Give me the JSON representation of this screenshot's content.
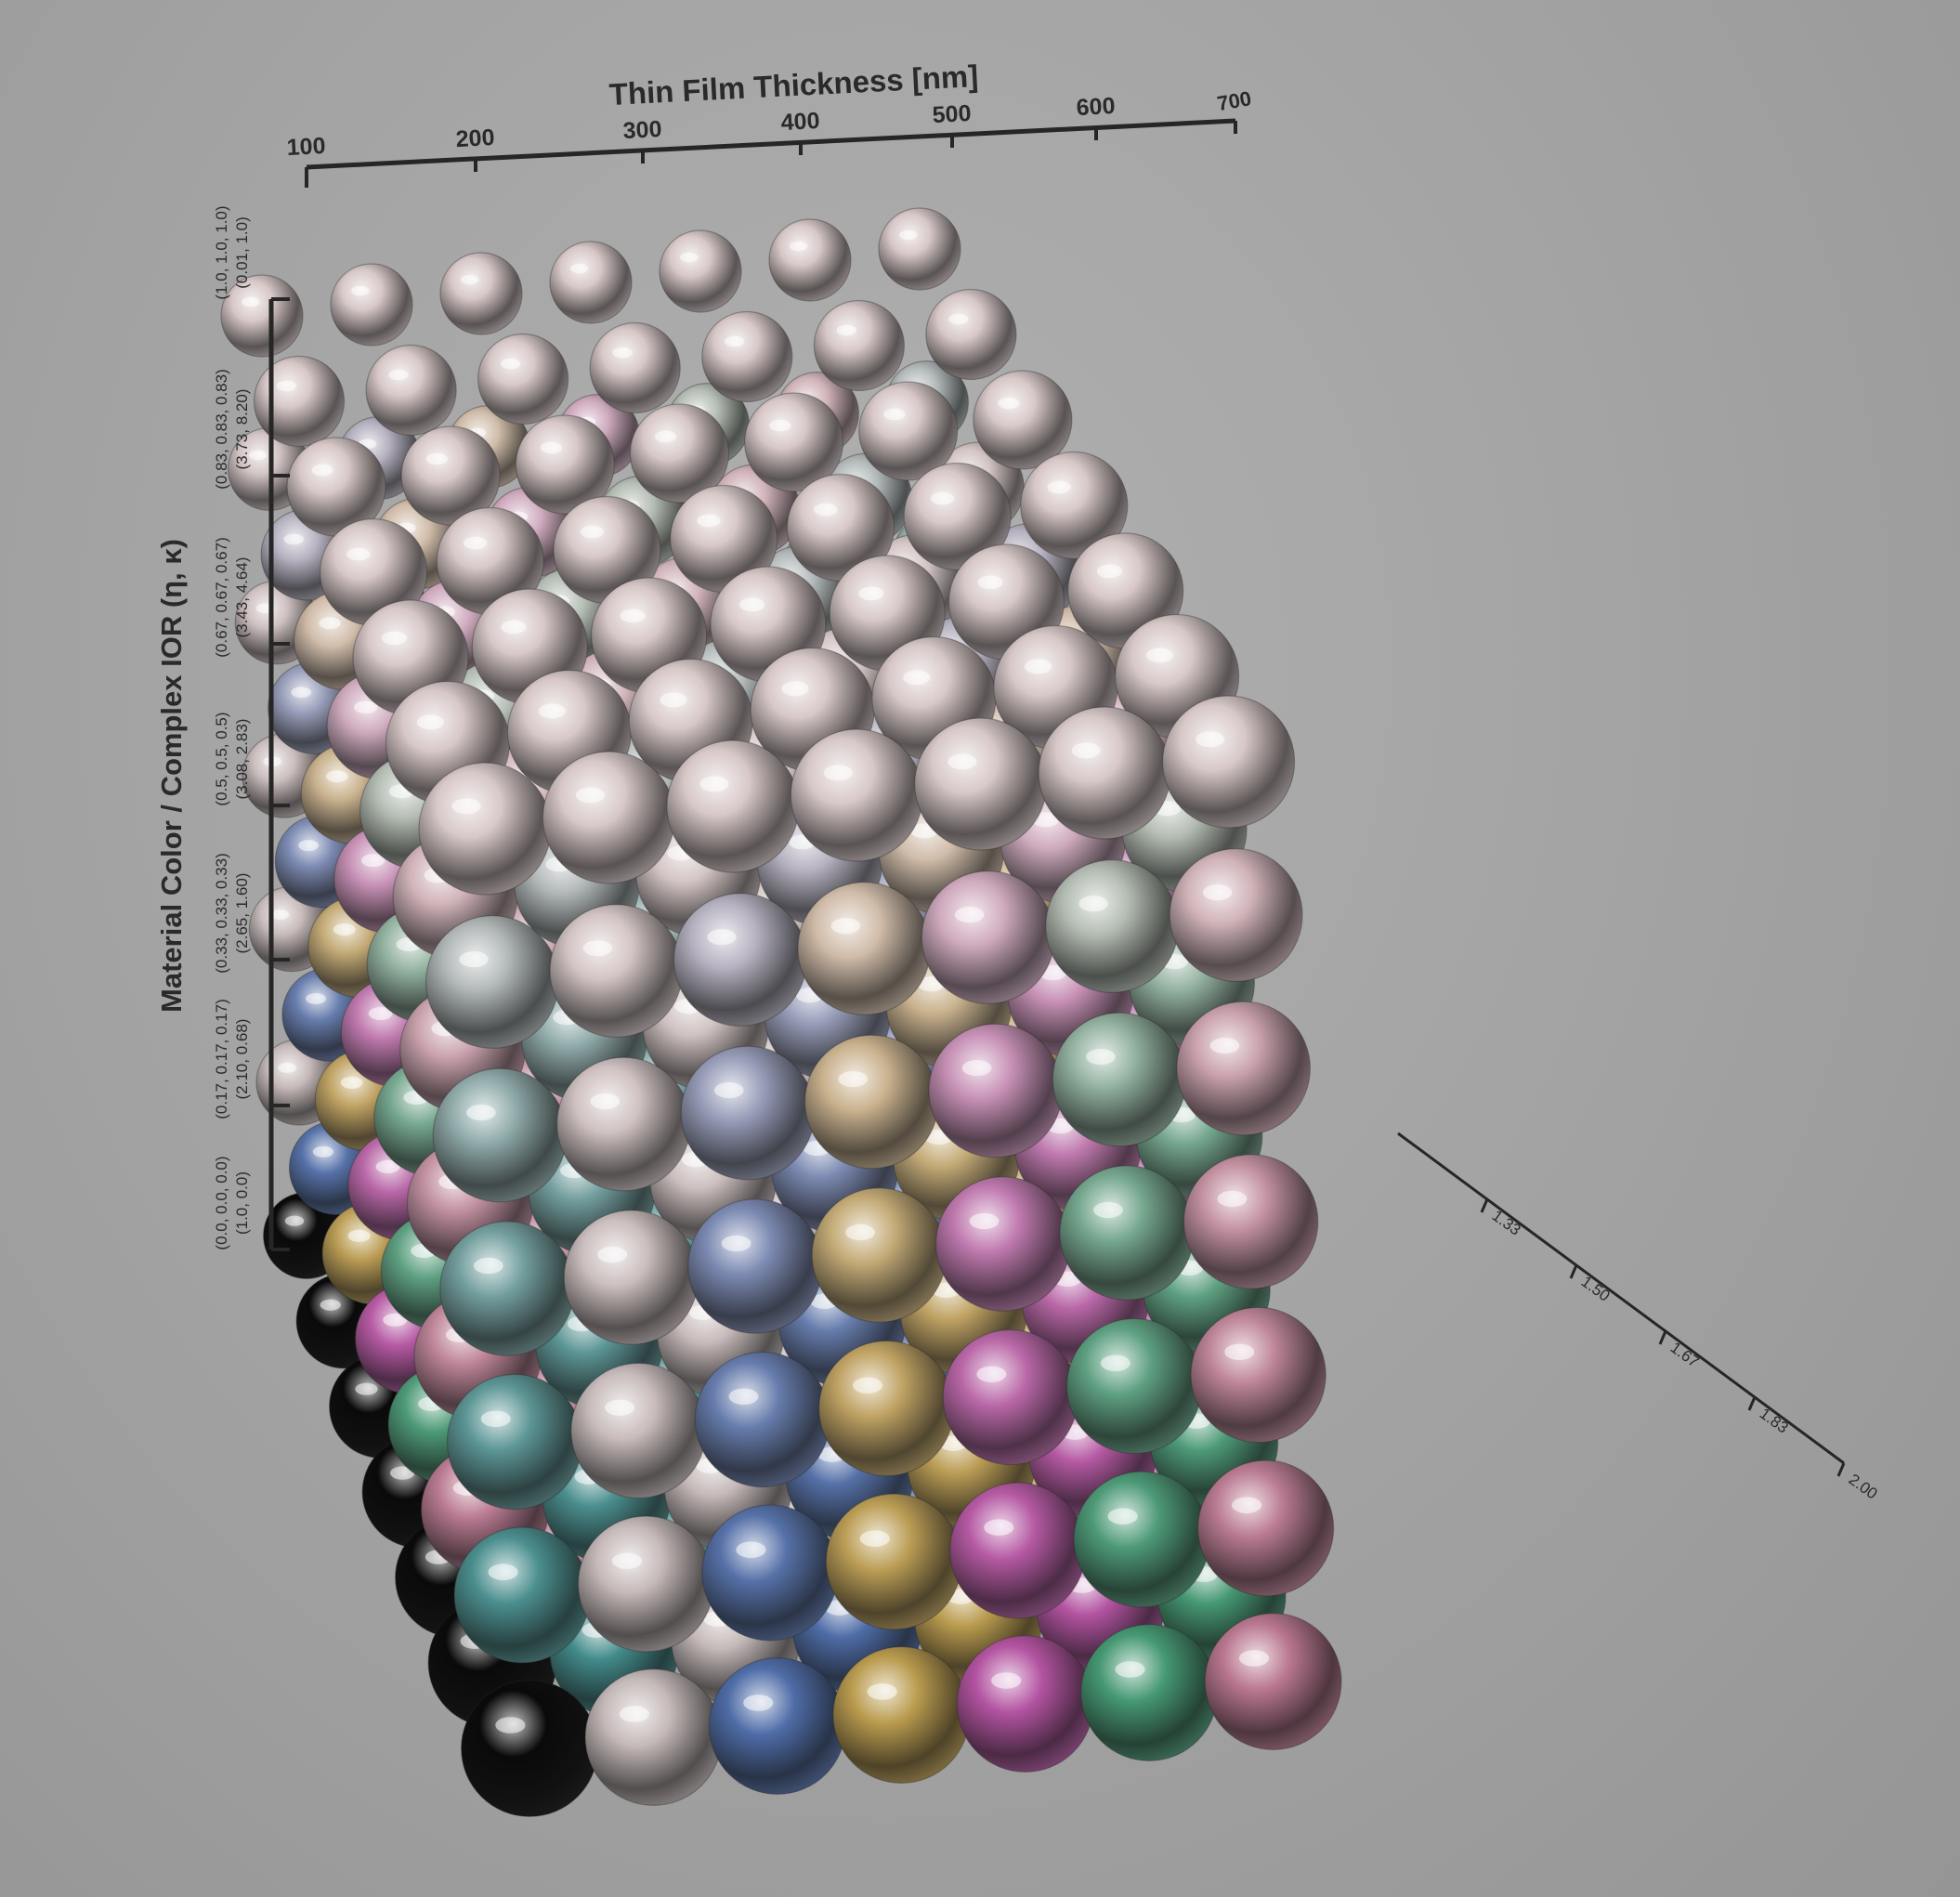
{
  "figure": {
    "background": "#a3a3a3",
    "axis_color": "#262626",
    "top_axis": {
      "title": "Thin Film Thickness [nm]",
      "ticks": [
        "100",
        "200",
        "300",
        "400",
        "500",
        "600",
        "700"
      ]
    },
    "left_axis": {
      "title": "Material Color / Complex IOR (η, κ)",
      "ticks": [
        {
          "color": "(0.0, 0.0, 0.0)",
          "ior": "(1.0, 0.0)"
        },
        {
          "color": "(0.17, 0.17, 0.17)",
          "ior": "(2.10, 0.68)"
        },
        {
          "color": "(0.33, 0.33, 0.33)",
          "ior": "(2.65, 1.60)"
        },
        {
          "color": "(0.5, 0.5, 0.5)",
          "ior": "(3.08, 2.83)"
        },
        {
          "color": "(0.67, 0.67, 0.67)",
          "ior": "(3.43, 4.64)"
        },
        {
          "color": "(0.83, 0.83, 0.83)",
          "ior": "(3.73, 8.20)"
        },
        {
          "color": "(1.0, 1.0, 1.0)",
          "ior": "(0.01, 1.0)"
        }
      ]
    },
    "depth_axis": {
      "ticks": [
        "1.33",
        "1.50",
        "1.67",
        "1.83",
        "2.00"
      ]
    },
    "grid": {
      "thickness_steps": 7,
      "color_steps": 7,
      "film_ior_steps": 7
    },
    "palette": {
      "base_gray": "#8a8a8a",
      "silver": "#d8c8c8",
      "gold": "#c9a03a",
      "magenta": "#c040a8",
      "green": "#2e9c6a",
      "blue": "#3a62b0",
      "teal": "#2a8a8a",
      "pink": "#c87090",
      "black": "#0a0a0a"
    }
  }
}
